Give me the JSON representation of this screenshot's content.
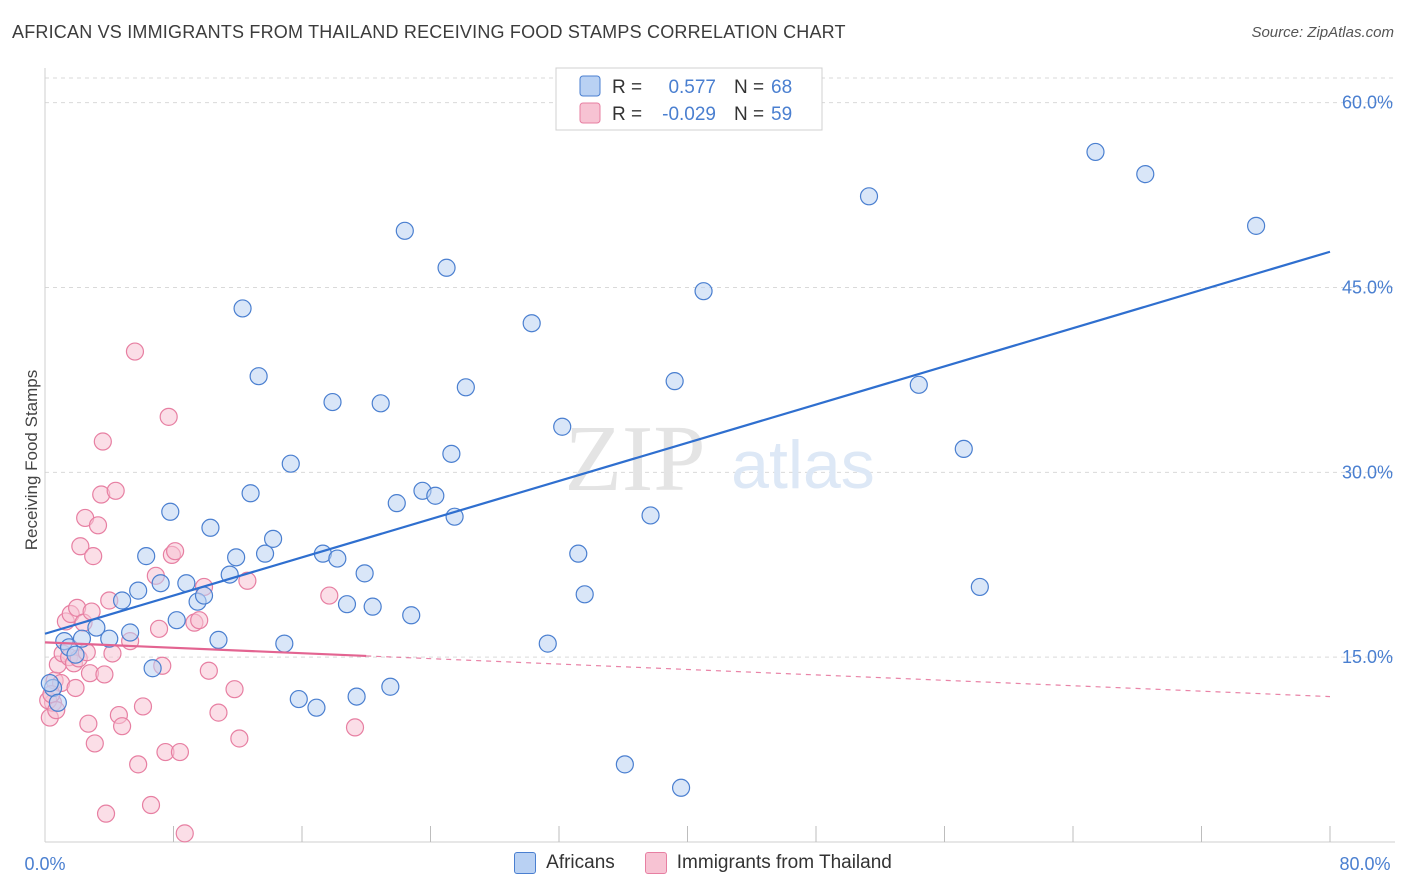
{
  "title": "AFRICAN VS IMMIGRANTS FROM THAILAND RECEIVING FOOD STAMPS CORRELATION CHART",
  "source": "Source: ZipAtlas.com",
  "watermark": {
    "zip": "ZIP",
    "atlas": "atlas"
  },
  "colors": {
    "blue": "#4a7fd0",
    "blue_fill": "#b9d1f3",
    "blue_line": "#2f6fcf",
    "pink": "#e77fa2",
    "pink_fill": "#f7c3d3",
    "pink_line": "#e36491",
    "grid": "#d9d9d9"
  },
  "legend": {
    "africans": {
      "r_label": "R =",
      "r_value": "0.577",
      "n_label": "N =",
      "n_value": "68"
    },
    "thailand": {
      "r_label": "R =",
      "r_value": "-0.029",
      "n_label": "N =",
      "n_value": "59"
    }
  },
  "bottom_legend": {
    "africans": "Africans",
    "thailand": "Immigrants from Thailand"
  },
  "chart_data": {
    "type": "scatter",
    "title": "AFRICAN VS IMMIGRANTS FROM THAILAND RECEIVING FOOD STAMPS CORRELATION CHART",
    "xlabel": "",
    "ylabel": "Receiving Food Stamps",
    "xlim": [
      0,
      80
    ],
    "ylim": [
      0,
      62
    ],
    "x_tick_labels": [
      "0.0%",
      "80.0%"
    ],
    "y_ticks": [
      15,
      30,
      45,
      60
    ],
    "y_tick_labels": [
      "15.0%",
      "30.0%",
      "45.0%",
      "60.0%"
    ],
    "grid": true,
    "series": [
      {
        "name": "Africans",
        "r": 0.577,
        "n": 68,
        "trend": {
          "x": [
            0,
            80
          ],
          "y": [
            16.9,
            47.9
          ]
        },
        "points": [
          [
            0.5,
            12.5
          ],
          [
            0.8,
            11.3
          ],
          [
            1.2,
            16.3
          ],
          [
            1.5,
            15.8
          ],
          [
            1.9,
            15.2
          ],
          [
            2.3,
            16.5
          ],
          [
            3.2,
            17.4
          ],
          [
            4.0,
            16.5
          ],
          [
            4.8,
            19.6
          ],
          [
            5.3,
            17.0
          ],
          [
            5.8,
            20.4
          ],
          [
            6.3,
            23.2
          ],
          [
            6.7,
            14.1
          ],
          [
            7.2,
            21.0
          ],
          [
            7.8,
            26.8
          ],
          [
            8.2,
            18.0
          ],
          [
            8.8,
            21.0
          ],
          [
            9.5,
            19.5
          ],
          [
            9.9,
            20.0
          ],
          [
            10.3,
            25.5
          ],
          [
            10.8,
            16.4
          ],
          [
            11.5,
            21.7
          ],
          [
            11.9,
            23.1
          ],
          [
            12.3,
            43.3
          ],
          [
            12.8,
            28.3
          ],
          [
            13.3,
            37.8
          ],
          [
            13.7,
            23.4
          ],
          [
            14.2,
            24.6
          ],
          [
            14.9,
            16.1
          ],
          [
            15.3,
            30.7
          ],
          [
            15.8,
            11.6
          ],
          [
            16.9,
            10.9
          ],
          [
            17.3,
            23.4
          ],
          [
            17.9,
            35.7
          ],
          [
            18.2,
            23.0
          ],
          [
            18.8,
            19.3
          ],
          [
            19.4,
            11.8
          ],
          [
            19.9,
            21.8
          ],
          [
            20.4,
            19.1
          ],
          [
            20.9,
            35.6
          ],
          [
            21.5,
            12.6
          ],
          [
            21.9,
            27.5
          ],
          [
            22.4,
            49.6
          ],
          [
            22.8,
            18.4
          ],
          [
            23.5,
            28.5
          ],
          [
            24.3,
            28.1
          ],
          [
            25.0,
            46.6
          ],
          [
            25.3,
            31.5
          ],
          [
            25.5,
            26.4
          ],
          [
            26.2,
            36.9
          ],
          [
            30.3,
            42.1
          ],
          [
            31.3,
            16.1
          ],
          [
            32.2,
            33.7
          ],
          [
            33.2,
            23.4
          ],
          [
            33.6,
            20.1
          ],
          [
            36.1,
            6.3
          ],
          [
            37.7,
            26.5
          ],
          [
            39.2,
            37.4
          ],
          [
            39.6,
            4.4
          ],
          [
            41.0,
            44.7
          ],
          [
            51.3,
            52.4
          ],
          [
            54.4,
            37.1
          ],
          [
            57.2,
            31.9
          ],
          [
            58.2,
            20.7
          ],
          [
            65.4,
            56.0
          ],
          [
            68.5,
            54.2
          ],
          [
            75.4,
            50.0
          ],
          [
            0.3,
            12.9
          ]
        ]
      },
      {
        "name": "Immigrants from Thailand",
        "r": -0.029,
        "n": 59,
        "trend": {
          "x": [
            0,
            80
          ],
          "y": [
            16.2,
            11.8
          ]
        },
        "trend_solid_to_x": 20,
        "points": [
          [
            0.3,
            10.1
          ],
          [
            0.5,
            11.3
          ],
          [
            0.6,
            13.1
          ],
          [
            0.8,
            14.4
          ],
          [
            1.0,
            12.9
          ],
          [
            1.1,
            15.3
          ],
          [
            1.3,
            17.9
          ],
          [
            1.5,
            15.0
          ],
          [
            1.6,
            18.5
          ],
          [
            1.8,
            14.5
          ],
          [
            1.9,
            12.5
          ],
          [
            2.0,
            19.0
          ],
          [
            2.1,
            14.9
          ],
          [
            2.2,
            24.0
          ],
          [
            2.4,
            17.8
          ],
          [
            2.5,
            26.3
          ],
          [
            2.6,
            15.4
          ],
          [
            2.7,
            9.6
          ],
          [
            2.8,
            13.7
          ],
          [
            2.9,
            18.7
          ],
          [
            3.0,
            23.2
          ],
          [
            3.1,
            8.0
          ],
          [
            3.3,
            25.7
          ],
          [
            3.5,
            28.2
          ],
          [
            3.6,
            32.5
          ],
          [
            3.7,
            13.6
          ],
          [
            3.8,
            2.3
          ],
          [
            4.0,
            19.6
          ],
          [
            4.2,
            15.3
          ],
          [
            4.4,
            28.5
          ],
          [
            4.6,
            10.3
          ],
          [
            4.8,
            9.4
          ],
          [
            5.3,
            16.3
          ],
          [
            5.6,
            39.8
          ],
          [
            5.8,
            6.3
          ],
          [
            6.1,
            11.0
          ],
          [
            6.6,
            3.0
          ],
          [
            6.9,
            21.6
          ],
          [
            7.1,
            17.3
          ],
          [
            7.3,
            14.3
          ],
          [
            7.5,
            7.3
          ],
          [
            7.7,
            34.5
          ],
          [
            7.9,
            23.3
          ],
          [
            8.1,
            23.6
          ],
          [
            8.4,
            7.3
          ],
          [
            8.7,
            0.7
          ],
          [
            9.3,
            17.8
          ],
          [
            9.6,
            18.0
          ],
          [
            9.9,
            20.7
          ],
          [
            10.2,
            13.9
          ],
          [
            10.8,
            10.5
          ],
          [
            11.8,
            12.4
          ],
          [
            12.1,
            8.4
          ],
          [
            12.6,
            21.2
          ],
          [
            17.7,
            20.0
          ],
          [
            19.3,
            9.3
          ],
          [
            0.2,
            11.5
          ],
          [
            0.4,
            12.0
          ],
          [
            0.7,
            10.7
          ]
        ]
      }
    ]
  }
}
